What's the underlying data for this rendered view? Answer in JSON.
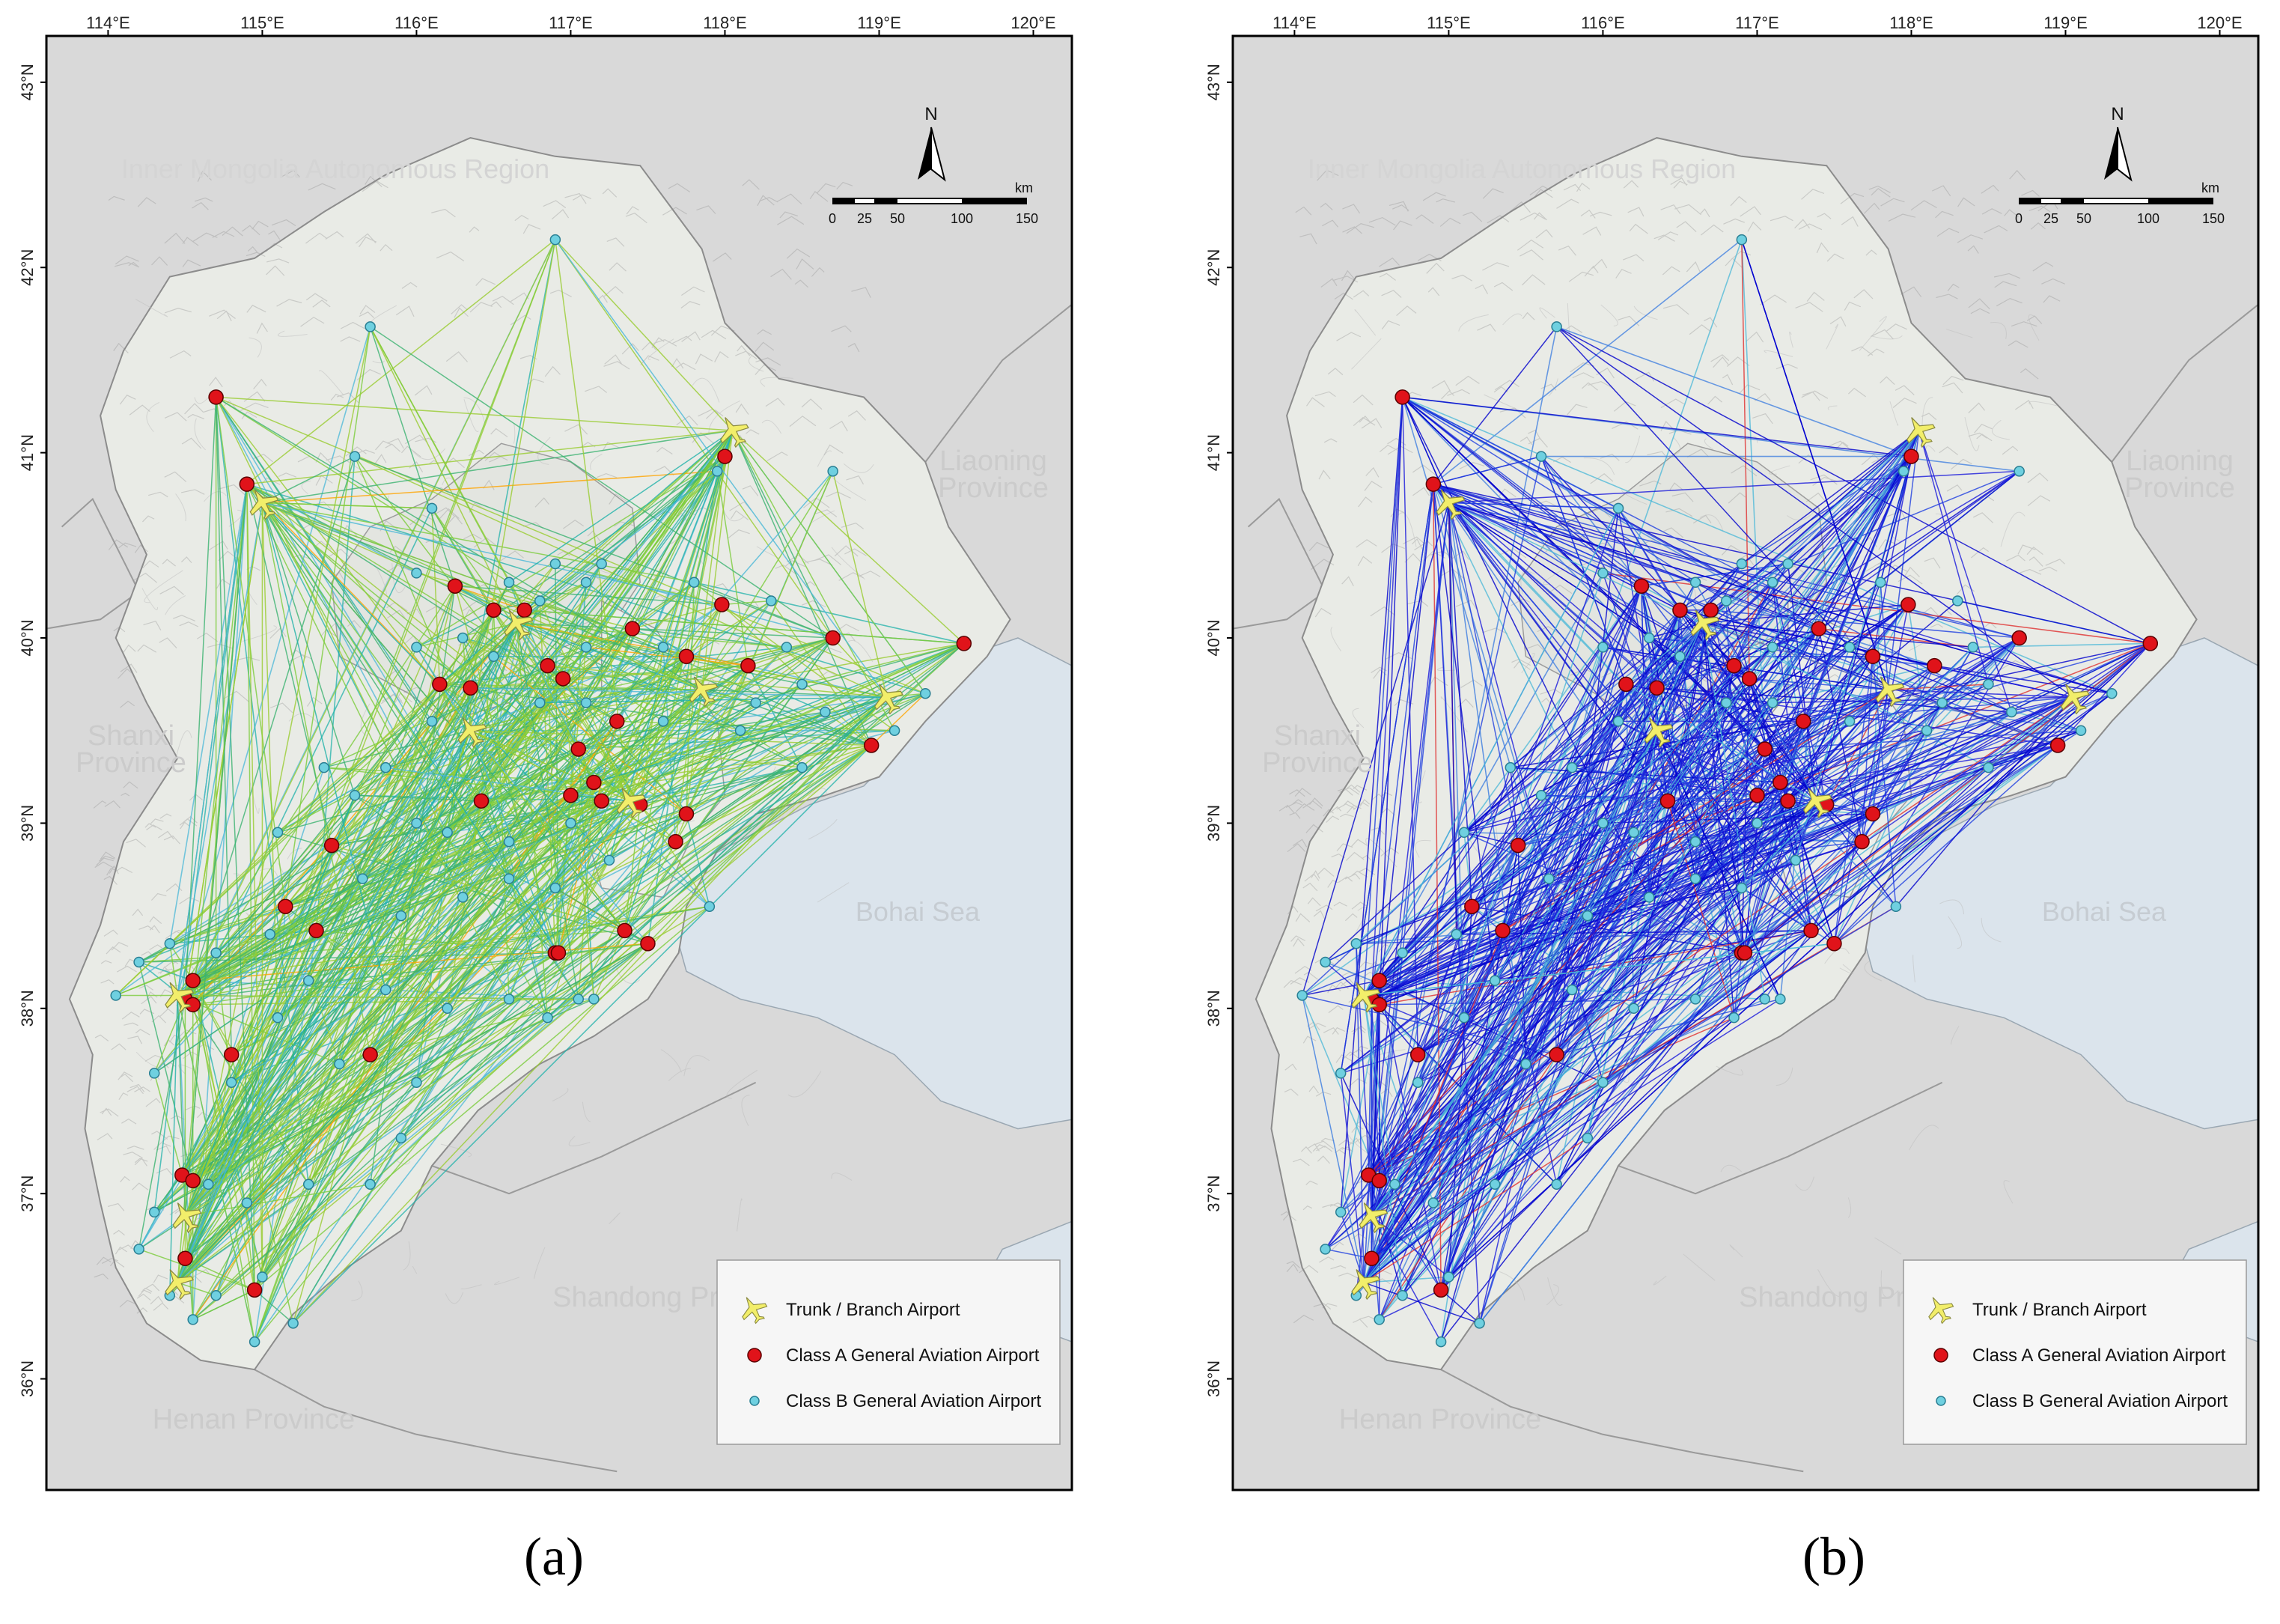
{
  "panels": [
    {
      "id": "a",
      "caption": "(a)",
      "palette": [
        "#9acd32",
        "#7ccd3c",
        "#3cb371",
        "#20b2aa",
        "#4ab8d8",
        "#ffa500",
        "#1e90ff"
      ]
    },
    {
      "id": "b",
      "caption": "(b)",
      "palette": [
        "#1a1adb",
        "#0000cd",
        "#2040e0",
        "#3a7be0",
        "#4ab8d8",
        "#e03030",
        "#7ec8e3"
      ]
    }
  ],
  "map": {
    "lon_ticks": [
      "114°E",
      "115°E",
      "116°E",
      "117°E",
      "118°E",
      "119°E",
      "120°E"
    ],
    "lat_ticks": [
      "43°N",
      "42°N",
      "41°N",
      "40°N",
      "39°N",
      "38°N",
      "37°N",
      "36°N"
    ],
    "labels": {
      "inner_mongolia": "Inner Mongolia Autonomous Region",
      "liaoning": [
        "Liaoning",
        "Province"
      ],
      "shanxi": [
        "Shanxi",
        "Province"
      ],
      "bohai": "Bohai Sea",
      "shandong": "Shandong Province",
      "henan": "Henan Province"
    },
    "north": "N",
    "scale": {
      "unit": "km",
      "ticks": [
        "0",
        "25",
        "50",
        "100",
        "150"
      ]
    },
    "legend": [
      {
        "symbol": "plane",
        "label": "Trunk / Branch Airport"
      },
      {
        "symbol": "red-dot",
        "label": "Class A General Aviation Airport"
      },
      {
        "symbol": "blue-dot",
        "label": "Class B General Aviation Airport"
      }
    ],
    "colors": {
      "land": "#d9d9d9",
      "hebei": "#e9ebe6",
      "sea": "#dbe4ec",
      "classA": "#e0131a",
      "classB": "#6fd0e0",
      "plane": "#f2ee6a"
    }
  },
  "airports": {
    "trunk": [
      [
        115.0,
        40.73
      ],
      [
        118.05,
        41.12
      ],
      [
        116.65,
        40.08
      ],
      [
        116.35,
        39.5
      ],
      [
        117.85,
        39.72
      ],
      [
        119.05,
        39.68
      ],
      [
        117.38,
        39.12
      ],
      [
        114.45,
        38.07
      ],
      [
        114.5,
        36.88
      ],
      [
        114.45,
        36.52
      ]
    ],
    "classA": [
      [
        114.7,
        41.3
      ],
      [
        114.9,
        40.83
      ],
      [
        116.25,
        40.28
      ],
      [
        116.5,
        40.15
      ],
      [
        116.7,
        40.15
      ],
      [
        117.4,
        40.05
      ],
      [
        117.98,
        40.18
      ],
      [
        118.7,
        40.0
      ],
      [
        119.55,
        39.97
      ],
      [
        116.15,
        39.75
      ],
      [
        116.35,
        39.73
      ],
      [
        116.85,
        39.85
      ],
      [
        116.95,
        39.78
      ],
      [
        117.75,
        39.9
      ],
      [
        118.15,
        39.85
      ],
      [
        117.3,
        39.55
      ],
      [
        117.05,
        39.4
      ],
      [
        117.15,
        39.22
      ],
      [
        117.0,
        39.15
      ],
      [
        117.2,
        39.12
      ],
      [
        117.45,
        39.1
      ],
      [
        117.75,
        39.05
      ],
      [
        117.68,
        38.9
      ],
      [
        116.42,
        39.12
      ],
      [
        118.95,
        39.42
      ],
      [
        115.45,
        38.88
      ],
      [
        115.15,
        38.55
      ],
      [
        115.35,
        38.42
      ],
      [
        116.9,
        38.3
      ],
      [
        116.92,
        38.3
      ],
      [
        117.35,
        38.42
      ],
      [
        117.5,
        38.35
      ],
      [
        114.55,
        38.15
      ],
      [
        114.5,
        38.05
      ],
      [
        114.55,
        38.02
      ],
      [
        114.8,
        37.75
      ],
      [
        115.7,
        37.75
      ],
      [
        114.48,
        37.1
      ],
      [
        114.55,
        37.07
      ],
      [
        114.5,
        36.65
      ],
      [
        114.95,
        36.48
      ],
      [
        118.0,
        40.98
      ]
    ],
    "classB": [
      [
        115.7,
        41.68
      ],
      [
        116.9,
        42.15
      ],
      [
        115.6,
        40.98
      ],
      [
        118.7,
        40.9
      ],
      [
        116.1,
        40.7
      ],
      [
        117.95,
        40.9
      ],
      [
        116.0,
        40.35
      ],
      [
        116.9,
        40.4
      ],
      [
        117.2,
        40.4
      ],
      [
        116.6,
        40.3
      ],
      [
        116.8,
        40.2
      ],
      [
        117.1,
        40.3
      ],
      [
        118.3,
        40.2
      ],
      [
        117.8,
        40.3
      ],
      [
        116.3,
        40.0
      ],
      [
        116.0,
        39.95
      ],
      [
        117.1,
        39.95
      ],
      [
        117.6,
        39.95
      ],
      [
        118.4,
        39.95
      ],
      [
        118.5,
        39.75
      ],
      [
        118.2,
        39.65
      ],
      [
        118.65,
        39.6
      ],
      [
        119.3,
        39.7
      ],
      [
        119.1,
        39.5
      ],
      [
        116.5,
        39.9
      ],
      [
        116.8,
        39.65
      ],
      [
        117.1,
        39.65
      ],
      [
        117.6,
        39.55
      ],
      [
        118.1,
        39.5
      ],
      [
        118.5,
        39.3
      ],
      [
        116.1,
        39.55
      ],
      [
        115.8,
        39.3
      ],
      [
        115.6,
        39.15
      ],
      [
        116.0,
        39.0
      ],
      [
        116.2,
        38.95
      ],
      [
        116.6,
        38.9
      ],
      [
        117.0,
        39.0
      ],
      [
        115.4,
        39.3
      ],
      [
        115.1,
        38.95
      ],
      [
        115.65,
        38.7
      ],
      [
        115.9,
        38.5
      ],
      [
        116.3,
        38.6
      ],
      [
        116.6,
        38.7
      ],
      [
        117.25,
        38.8
      ],
      [
        117.9,
        38.55
      ],
      [
        116.9,
        38.65
      ],
      [
        115.3,
        38.15
      ],
      [
        115.8,
        38.1
      ],
      [
        116.2,
        38.0
      ],
      [
        116.6,
        38.05
      ],
      [
        117.05,
        38.05
      ],
      [
        117.15,
        38.05
      ],
      [
        116.0,
        37.6
      ],
      [
        116.85,
        37.95
      ],
      [
        115.05,
        38.4
      ],
      [
        114.7,
        38.3
      ],
      [
        114.4,
        38.35
      ],
      [
        114.2,
        38.25
      ],
      [
        114.05,
        38.07
      ],
      [
        114.3,
        37.65
      ],
      [
        114.8,
        37.6
      ],
      [
        115.1,
        37.95
      ],
      [
        115.5,
        37.7
      ],
      [
        115.9,
        37.3
      ],
      [
        115.7,
        37.05
      ],
      [
        114.65,
        37.05
      ],
      [
        114.9,
        36.95
      ],
      [
        115.3,
        37.05
      ],
      [
        114.2,
        36.7
      ],
      [
        114.4,
        36.45
      ],
      [
        114.55,
        36.32
      ],
      [
        114.7,
        36.45
      ],
      [
        114.95,
        36.2
      ],
      [
        115.0,
        36.55
      ],
      [
        115.2,
        36.3
      ],
      [
        114.3,
        36.9
      ]
    ]
  }
}
